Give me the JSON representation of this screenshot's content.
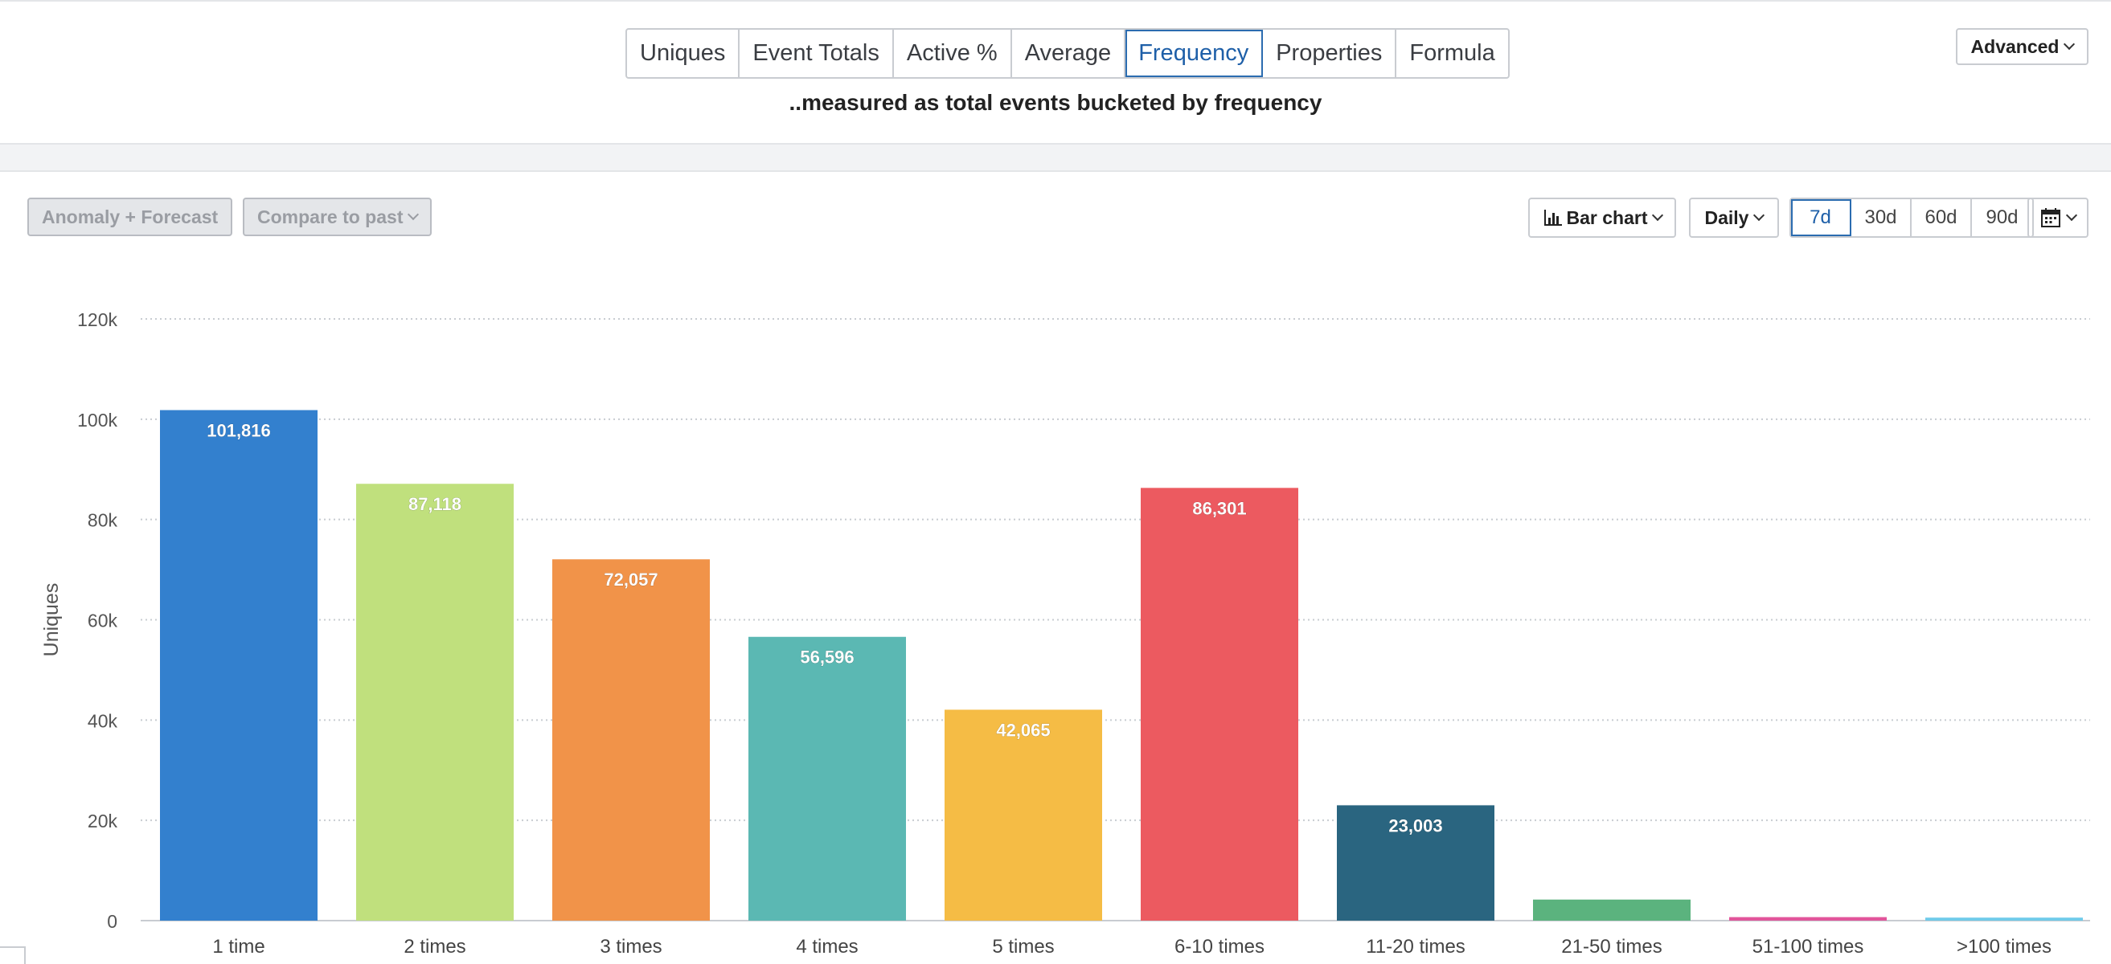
{
  "metric_tabs": [
    {
      "label": "Uniques",
      "active": false
    },
    {
      "label": "Event Totals",
      "active": false
    },
    {
      "label": "Active %",
      "active": false
    },
    {
      "label": "Average",
      "active": false
    },
    {
      "label": "Frequency",
      "active": true
    },
    {
      "label": "Properties",
      "active": false
    },
    {
      "label": "Formula",
      "active": false
    }
  ],
  "subtitle": "..measured as total events bucketed by frequency",
  "advanced_label": "Advanced",
  "toolbar": {
    "anomaly_label": "Anomaly + Forecast",
    "compare_label": "Compare to past",
    "chart_type_label": "Bar chart",
    "interval_label": "Daily",
    "ranges": [
      {
        "label": "7d",
        "active": true
      },
      {
        "label": "30d",
        "active": false
      },
      {
        "label": "60d",
        "active": false
      },
      {
        "label": "90d",
        "active": false
      }
    ],
    "calendar_icon": "calendar-icon"
  },
  "colors": {
    "accent": "#2b6cb0",
    "gridline": "#c8ccd1"
  },
  "chart_data": {
    "type": "bar",
    "ylabel": "Uniques",
    "ylim": [
      0,
      120000
    ],
    "yticks": [
      {
        "value": 0,
        "label": "0"
      },
      {
        "value": 20000,
        "label": "20k"
      },
      {
        "value": 40000,
        "label": "40k"
      },
      {
        "value": 60000,
        "label": "60k"
      },
      {
        "value": 80000,
        "label": "80k"
      },
      {
        "value": 100000,
        "label": "100k"
      },
      {
        "value": 120000,
        "label": "120k"
      }
    ],
    "grid": true,
    "categories": [
      "1 time",
      "2 times",
      "3 times",
      "4 times",
      "5 times",
      "6-10 times",
      "11-20 times",
      "21-50 times",
      "51-100 times",
      ">100 times"
    ],
    "values": [
      101816,
      87118,
      72057,
      56596,
      42065,
      86301,
      23003,
      4200,
      700,
      600
    ],
    "value_labels": [
      "101,816",
      "87,118",
      "72,057",
      "56,596",
      "42,065",
      "86,301",
      "23,003",
      "",
      "",
      ""
    ],
    "colors": [
      "#3380ce",
      "#c0e07d",
      "#f19349",
      "#5bb8b3",
      "#f5bc45",
      "#ec5a60",
      "#2a6580",
      "#5bb37e",
      "#e2559b",
      "#6fcbea"
    ]
  }
}
